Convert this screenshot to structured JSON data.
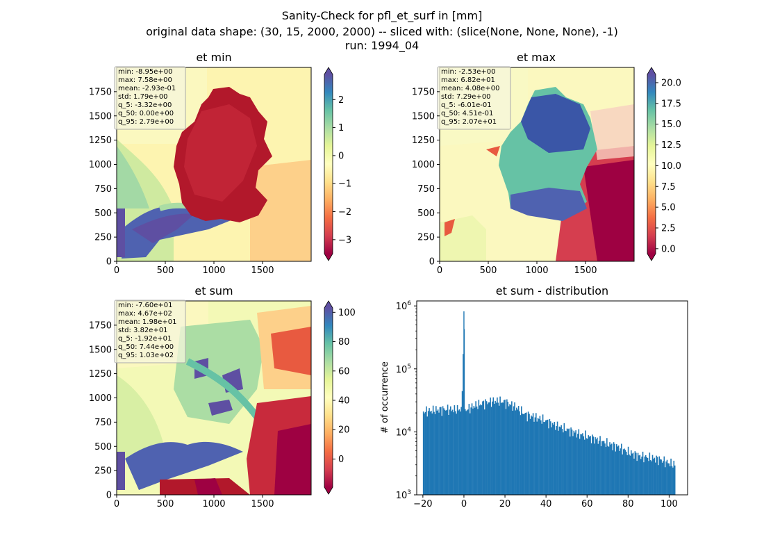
{
  "figure": {
    "title_lines": [
      "Sanity-Check for pfl_et_surf in [mm]",
      "original data shape: (30, 15, 2000, 2000) -- sliced with: (slice(None, None, None), -1)",
      "run: 1994_04"
    ]
  },
  "chart_data": [
    {
      "type": "heatmap",
      "title": "et min",
      "xlim": [
        0,
        2000
      ],
      "ylim": [
        0,
        2000
      ],
      "xticks": [
        0,
        500,
        1000,
        1500
      ],
      "yticks": [
        0,
        250,
        500,
        750,
        1000,
        1250,
        1500,
        1750
      ],
      "colormap": "Spectral",
      "colorbar": {
        "range": [
          -3.5,
          2.9
        ],
        "ticks": [
          2,
          1,
          0,
          -1,
          -2,
          -3
        ],
        "tick_labels": [
          "2",
          "1",
          "0",
          "−1",
          "−2",
          "−3"
        ],
        "extend": "both"
      },
      "stats_box": [
        "min: -8.95e+00",
        "max: 7.58e+00",
        "mean: -2.93e-01",
        "std: 1.79e+00",
        "q_5: -3.32e+00",
        "q_50: 0.00e+00",
        "q_95: 2.79e+00"
      ]
    },
    {
      "type": "heatmap",
      "title": "et max",
      "xlim": [
        0,
        2000
      ],
      "ylim": [
        0,
        2000
      ],
      "xticks": [
        0,
        500,
        1000,
        1500
      ],
      "yticks": [
        0,
        250,
        500,
        750,
        1000,
        1250,
        1500,
        1750
      ],
      "colormap": "Spectral",
      "colorbar": {
        "range": [
          -0.6,
          21.0
        ],
        "ticks": [
          20.0,
          17.5,
          15.0,
          12.5,
          10.0,
          7.5,
          5.0,
          2.5,
          0.0
        ],
        "tick_labels": [
          "20.0",
          "17.5",
          "15.0",
          "12.5",
          "10.0",
          "7.5",
          "5.0",
          "2.5",
          "0.0"
        ],
        "extend": "both"
      },
      "stats_box": [
        "min: -2.53e+00",
        "max: 6.82e+01",
        "mean: 4.08e+00",
        "std: 7.29e+00",
        "q_5: -6.01e-01",
        "q_50: 4.51e-01",
        "q_95: 2.07e+01"
      ]
    },
    {
      "type": "heatmap",
      "title": "et sum",
      "xlim": [
        0,
        2000
      ],
      "ylim": [
        0,
        2000
      ],
      "xticks": [
        0,
        500,
        1000,
        1500
      ],
      "yticks": [
        0,
        250,
        500,
        750,
        1000,
        1250,
        1500,
        1750
      ],
      "colormap": "Spectral",
      "colorbar": {
        "range": [
          -19.2,
          103
        ],
        "ticks": [
          100,
          80,
          60,
          40,
          20,
          0
        ],
        "tick_labels": [
          "100",
          "80",
          "60",
          "40",
          "20",
          "0"
        ],
        "extend": "both"
      },
      "stats_box": [
        "min: -7.60e+01",
        "max: 4.67e+02",
        "mean: 1.98e+01",
        "std: 3.82e+01",
        "q_5: -1.92e+01",
        "q_50: 7.44e+00",
        "q_95: 1.03e+02"
      ]
    },
    {
      "type": "bar",
      "title": "et sum - distribution",
      "ylabel": "# of occurrence",
      "xlabel": "",
      "xlim": [
        -23,
        109
      ],
      "ylim": [
        1000,
        1200000
      ],
      "yscale": "log",
      "xticks": [
        -20,
        0,
        20,
        40,
        60,
        80,
        100
      ],
      "xtick_labels": [
        "−20",
        "0",
        "20",
        "40",
        "60",
        "80",
        "100"
      ],
      "yticks": [
        1000,
        10000,
        100000,
        1000000
      ],
      "ytick_labels": [
        "10^3",
        "10^4",
        "10^5",
        "10^6"
      ],
      "bins": [
        -20,
        103
      ],
      "bar_color": "#1f77b4",
      "values_outline": [
        [
          -20,
          21000
        ],
        [
          -15,
          22000
        ],
        [
          -10,
          23000
        ],
        [
          -5,
          22500
        ],
        [
          -1,
          23000
        ],
        [
          0,
          820000
        ],
        [
          0.5,
          22000
        ],
        [
          5,
          26000
        ],
        [
          10,
          29000
        ],
        [
          15,
          31000
        ],
        [
          20,
          30000
        ],
        [
          25,
          25000
        ],
        [
          30,
          19000
        ],
        [
          35,
          17000
        ],
        [
          40,
          15000
        ],
        [
          45,
          12500
        ],
        [
          50,
          11000
        ],
        [
          55,
          9500
        ],
        [
          60,
          8500
        ],
        [
          65,
          7500
        ],
        [
          70,
          6500
        ],
        [
          75,
          5800
        ],
        [
          80,
          4800
        ],
        [
          85,
          4200
        ],
        [
          90,
          3900
        ],
        [
          95,
          3700
        ],
        [
          100,
          3200
        ],
        [
          103,
          3000
        ]
      ]
    }
  ]
}
